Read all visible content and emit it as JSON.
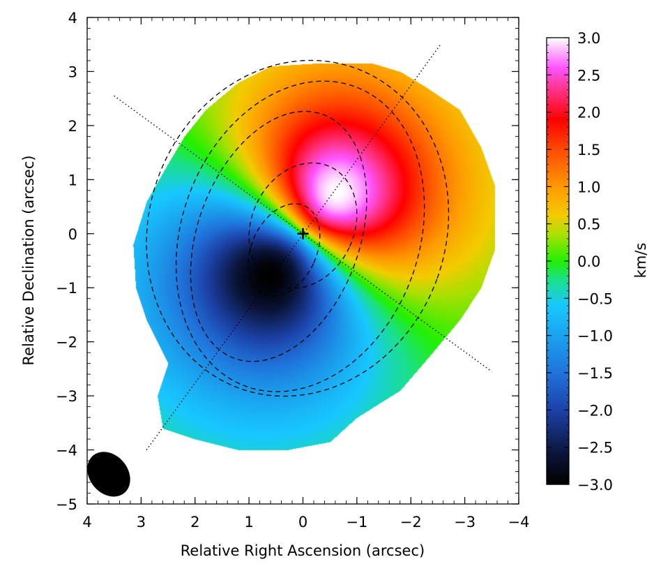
{
  "chart_data": {
    "type": "heatmap",
    "title": "",
    "xlabel": "Relative Right Ascension (arcsec)",
    "ylabel": "Relative Declination (arcsec)",
    "xlim": [
      4,
      -4
    ],
    "ylim": [
      -5,
      4
    ],
    "xticks": [
      4,
      3,
      2,
      1,
      0,
      -1,
      -2,
      -3,
      -4
    ],
    "xtick_labels": [
      "4",
      "3",
      "2",
      "1",
      "0",
      "−1",
      "−2",
      "−3",
      "−4"
    ],
    "yticks": [
      4,
      3,
      2,
      1,
      0,
      -1,
      -2,
      -3,
      -4,
      -5
    ],
    "ytick_labels": [
      "4",
      "3",
      "2",
      "1",
      "0",
      "−1",
      "−2",
      "−3",
      "−4",
      "−5"
    ],
    "colorbar": {
      "label": "km/s",
      "range": [
        -3.0,
        3.0
      ],
      "ticks": [
        3.0,
        2.5,
        2.0,
        1.5,
        1.0,
        0.5,
        0.0,
        -0.5,
        -1.0,
        -1.5,
        -2.0,
        -2.5,
        -3.0
      ],
      "tick_labels": [
        "3.0",
        "2.5",
        "2.0",
        "1.5",
        "1.0",
        "0.5",
        "0.0",
        "−0.5",
        "−1.0",
        "−1.5",
        "−2.0",
        "−2.5",
        "−3.0"
      ],
      "colors": [
        {
          "v": -3.0,
          "color": "#000000"
        },
        {
          "v": -2.6,
          "color": "#0a1438"
        },
        {
          "v": -2.0,
          "color": "#1c42a8"
        },
        {
          "v": -1.5,
          "color": "#1f74db"
        },
        {
          "v": -1.0,
          "color": "#1aa3ee"
        },
        {
          "v": -0.6,
          "color": "#18c8ff"
        },
        {
          "v": -0.25,
          "color": "#1ae08a"
        },
        {
          "v": 0.0,
          "color": "#22f000"
        },
        {
          "v": 0.35,
          "color": "#a8e000"
        },
        {
          "v": 0.6,
          "color": "#f2cc00"
        },
        {
          "v": 1.0,
          "color": "#ff9900"
        },
        {
          "v": 1.5,
          "color": "#ff4a00"
        },
        {
          "v": 1.9,
          "color": "#ff0000"
        },
        {
          "v": 2.3,
          "color": "#ff3388"
        },
        {
          "v": 2.6,
          "color": "#ff55ff"
        },
        {
          "v": 3.0,
          "color": "#ffffff"
        }
      ]
    },
    "velocity_field": {
      "v_max": 3.0,
      "position_angle_deg": 39,
      "turnover_radius_arcsec": 1.0,
      "center": [
        0,
        0
      ],
      "map_boundary": [
        [
          -1.3,
          3.15
        ],
        [
          -1.8,
          3.0
        ],
        [
          -2.3,
          2.7
        ],
        [
          -2.9,
          2.3
        ],
        [
          -3.3,
          1.6
        ],
        [
          -3.55,
          0.9
        ],
        [
          -3.55,
          -0.3
        ],
        [
          -3.3,
          -1.0
        ],
        [
          -2.9,
          -1.6
        ],
        [
          -2.4,
          -2.2
        ],
        [
          -1.8,
          -2.9
        ],
        [
          -1.0,
          -3.4
        ],
        [
          -0.5,
          -3.85
        ],
        [
          0.3,
          -4.0
        ],
        [
          1.2,
          -4.0
        ],
        [
          2.0,
          -3.8
        ],
        [
          2.6,
          -3.6
        ],
        [
          2.7,
          -3.0
        ],
        [
          2.5,
          -2.4
        ],
        [
          2.9,
          -1.6
        ],
        [
          3.1,
          -1.0
        ],
        [
          3.15,
          -0.2
        ],
        [
          2.9,
          0.6
        ],
        [
          2.5,
          1.3
        ],
        [
          2.2,
          1.8
        ],
        [
          1.8,
          2.3
        ],
        [
          1.2,
          2.8
        ],
        [
          0.6,
          3.1
        ],
        [
          -0.2,
          3.15
        ]
      ]
    },
    "contours": [
      {
        "cx": 0.45,
        "cy": -0.05,
        "rx": 1.5,
        "ry": 2.4,
        "rot_deg": 20
      },
      {
        "cx": 0.1,
        "cy": 0.1,
        "rx": 2.75,
        "ry": 3.15,
        "rot_deg": 20
      },
      {
        "cx": 0.35,
        "cy": -0.3,
        "rx": 0.6,
        "ry": 0.9,
        "rot_deg": 25
      },
      {
        "cx": 0.0,
        "cy": 0.15,
        "rx": 0.95,
        "ry": 1.2,
        "rot_deg": 25
      },
      {
        "cx": 0.05,
        "cy": -0.05,
        "rx": 2.2,
        "ry": 2.95,
        "rot_deg": 20
      }
    ],
    "major_axis_line": {
      "x": [
        2.9,
        -2.55
      ],
      "y": [
        -4.0,
        3.5
      ]
    },
    "minor_axis_line": {
      "x": [
        3.5,
        -3.5
      ],
      "y": [
        2.55,
        -2.55
      ]
    },
    "center_marker": {
      "x": 0,
      "y": 0,
      "symbol": "+"
    },
    "beam": {
      "x": 3.6,
      "y": -4.45,
      "major_arcsec": 0.85,
      "minor_arcsec": 0.45,
      "angle_deg": -40
    }
  }
}
